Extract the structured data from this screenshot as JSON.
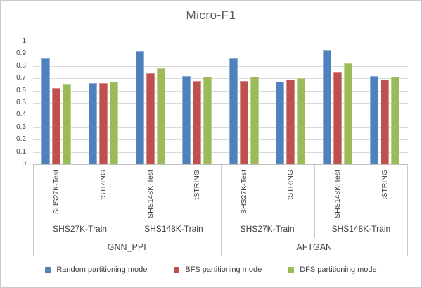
{
  "chart_data": {
    "type": "bar",
    "title": "Micro-F1",
    "ylim": [
      0,
      1
    ],
    "ytick_step": 0.1,
    "ytick_labels": [
      "1",
      "0.9",
      "0.8",
      "0.7",
      "0.6",
      "0.5",
      "0.4",
      "0.3",
      "0.2",
      "0.1",
      "0"
    ],
    "grid": true,
    "legend_position": "bottom",
    "categories": [
      "SHS27K-Test",
      "tSTRING",
      "SHS148K-Test",
      "tSTRING",
      "SHS27K-Test",
      "tSTRING",
      "SHS148K-Test",
      "tSTRING"
    ],
    "group_labels": [
      "SHS27K-Train",
      "SHS148K-Train",
      "SHS27K-Train",
      "SHS148K-Train"
    ],
    "top_labels": [
      "GNN_PPI",
      "AFTGAN"
    ],
    "series": [
      {
        "name": "Random partitioning mode",
        "color": "#4F81BD",
        "values": [
          0.86,
          0.66,
          0.92,
          0.72,
          0.86,
          0.67,
          0.93,
          0.72
        ]
      },
      {
        "name": "BFS partitioning mode",
        "color": "#C0504D",
        "values": [
          0.62,
          0.66,
          0.74,
          0.68,
          0.68,
          0.69,
          0.75,
          0.69
        ]
      },
      {
        "name": "DFS partitioning mode",
        "color": "#9BBB59",
        "values": [
          0.65,
          0.67,
          0.78,
          0.71,
          0.71,
          0.7,
          0.82,
          0.71
        ]
      }
    ],
    "colors": {
      "gridline": "#d9d9d9",
      "axis_line": "#bfbfbf",
      "label_text": "#404040",
      "title_text": "#595959",
      "frame_border": "#c9c9c9"
    }
  }
}
